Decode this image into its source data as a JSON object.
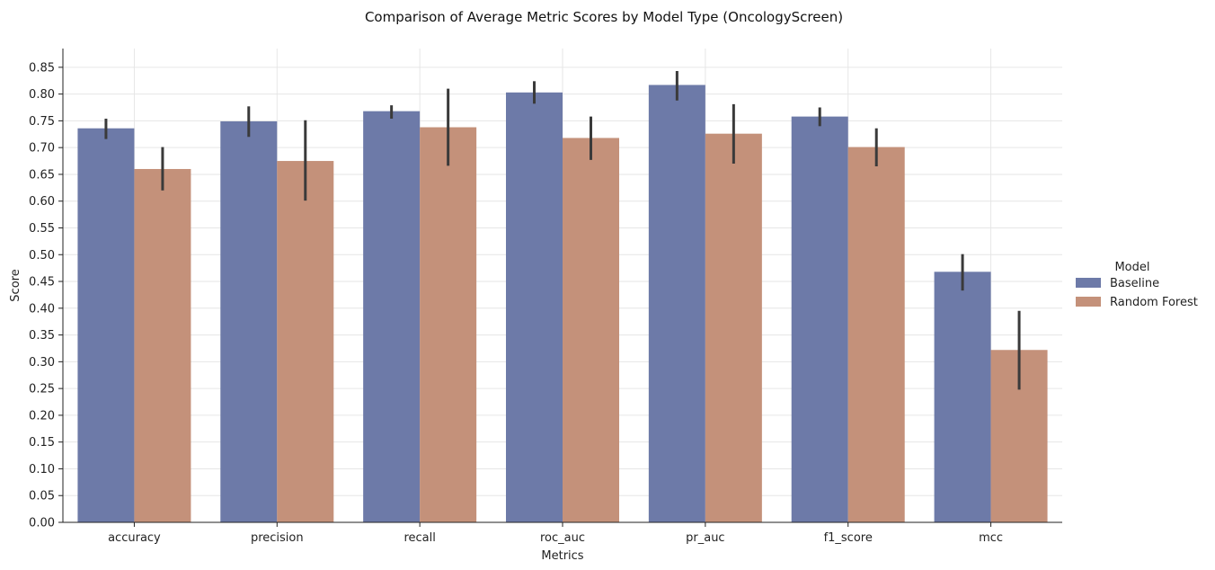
{
  "chart_data": {
    "type": "bar",
    "title": "Comparison of Average Metric Scores by Model Type (OncologyScreen)",
    "xlabel": "Metrics",
    "ylabel": "Score",
    "ylim": [
      0,
      0.885
    ],
    "yticks": [
      0.0,
      0.05,
      0.1,
      0.15,
      0.2,
      0.25,
      0.3,
      0.35,
      0.4,
      0.45,
      0.5,
      0.55,
      0.6,
      0.65,
      0.7,
      0.75,
      0.8,
      0.85
    ],
    "grid": true,
    "legend": {
      "title": "Model",
      "placement": "right"
    },
    "categories": [
      "accuracy",
      "precision",
      "recall",
      "roc_auc",
      "pr_auc",
      "f1_score",
      "mcc"
    ],
    "series": [
      {
        "name": "Baseline",
        "color": "#6d7aa8",
        "values": [
          0.736,
          0.749,
          0.768,
          0.803,
          0.817,
          0.758,
          0.468
        ],
        "err_low": [
          0.716,
          0.72,
          0.754,
          0.782,
          0.788,
          0.74,
          0.433
        ],
        "err_high": [
          0.754,
          0.777,
          0.779,
          0.824,
          0.843,
          0.775,
          0.501
        ]
      },
      {
        "name": "Random Forest",
        "color": "#c4917a",
        "values": [
          0.66,
          0.675,
          0.738,
          0.718,
          0.726,
          0.701,
          0.322
        ],
        "err_low": [
          0.62,
          0.601,
          0.666,
          0.677,
          0.67,
          0.665,
          0.248
        ],
        "err_high": [
          0.701,
          0.751,
          0.81,
          0.758,
          0.781,
          0.736,
          0.395
        ]
      }
    ],
    "error_bar_color": "#3a3a3a"
  }
}
